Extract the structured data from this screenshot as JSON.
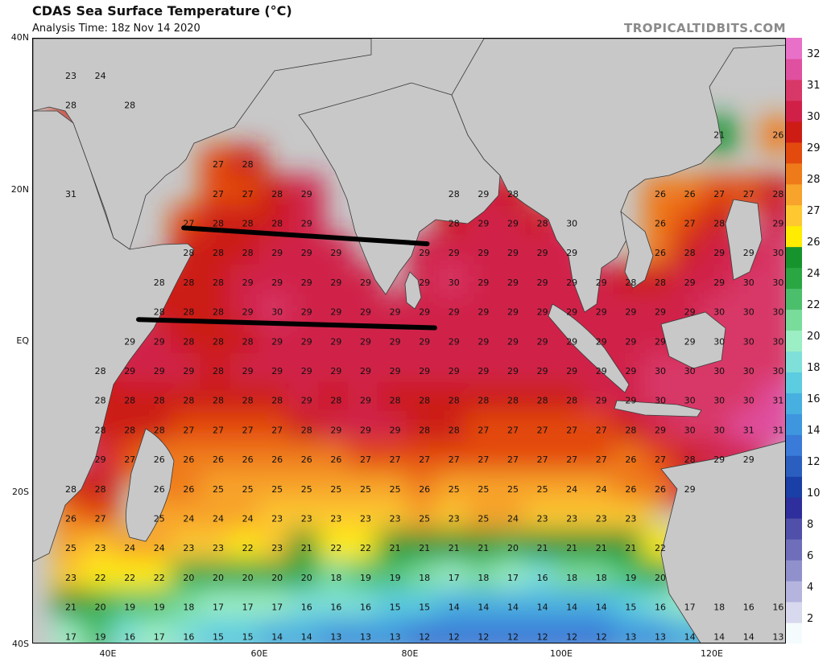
{
  "header": {
    "title": "CDAS Sea Surface Temperature (°C)",
    "analysis": "Analysis Time: 18z Nov 14 2020",
    "brand": "TROPICALTIDBITS.COM"
  },
  "map": {
    "lat_labels": [
      "40N",
      "20N",
      "EQ",
      "20S",
      "40S"
    ],
    "lon_labels": [
      "40E",
      "60E",
      "80E",
      "100E",
      "120E"
    ],
    "lon_range": [
      30,
      130
    ],
    "lat_range": [
      -40,
      40
    ],
    "annotation_lines": [
      {
        "from": [
          50.0,
          15.0
        ],
        "to": [
          82.3,
          12.9
        ]
      },
      {
        "from": [
          44.0,
          2.9
        ],
        "to": [
          83.3,
          1.8
        ]
      }
    ],
    "colors": {
      "land": "#c8c8c8",
      "coast": "#3a3a3a",
      "annotation": "#000000"
    }
  },
  "colorbar": {
    "labels": [
      "32",
      "31",
      "30",
      "29",
      "28",
      "27",
      "26",
      "24",
      "22",
      "20",
      "18",
      "16",
      "14",
      "12",
      "10",
      "8",
      "6",
      "4",
      "2"
    ],
    "colors": [
      "#f4fbfc",
      "#d8d8ee",
      "#b4b4de",
      "#9090cc",
      "#6e6ebb",
      "#5050aa",
      "#2e2e9c",
      "#1a3fa6",
      "#2a5fc0",
      "#3a7ad8",
      "#3e96de",
      "#48b0e0",
      "#5ccce0",
      "#7ee0d8",
      "#9ceec4",
      "#7adc9a",
      "#4cbf6c",
      "#2aa642",
      "#17932e",
      "#ffec00",
      "#fdc830",
      "#f7a32c",
      "#ef7a1a",
      "#e34a0e",
      "#cc1c14",
      "#d02048",
      "#d83868",
      "#e050a0",
      "#e870c8"
    ]
  },
  "sst_values": [
    [
      23,
      24,
      null,
      null,
      null,
      null,
      null,
      null,
      null,
      null,
      null,
      null,
      null,
      null,
      null,
      null,
      null,
      null,
      null,
      null,
      null,
      null,
      null,
      null,
      null
    ],
    [
      28,
      null,
      28,
      null,
      null,
      null,
      null,
      null,
      null,
      null,
      null,
      null,
      null,
      null,
      null,
      null,
      null,
      null,
      null,
      null,
      null,
      null,
      null,
      null,
      null
    ],
    [
      null,
      null,
      null,
      null,
      null,
      null,
      null,
      null,
      null,
      null,
      null,
      null,
      null,
      null,
      null,
      null,
      null,
      null,
      null,
      null,
      null,
      null,
      21,
      null,
      26
    ],
    [
      null,
      null,
      null,
      null,
      null,
      27,
      28,
      null,
      null,
      null,
      null,
      null,
      null,
      null,
      null,
      null,
      null,
      null,
      null,
      null,
      null,
      null,
      null,
      null,
      null
    ],
    [
      31,
      null,
      null,
      null,
      null,
      27,
      27,
      28,
      29,
      null,
      null,
      null,
      null,
      28,
      29,
      28,
      null,
      null,
      null,
      null,
      26,
      26,
      27,
      27,
      28
    ],
    [
      null,
      null,
      null,
      null,
      27,
      28,
      28,
      28,
      29,
      null,
      null,
      null,
      null,
      28,
      29,
      29,
      28,
      30,
      null,
      null,
      26,
      27,
      28,
      null,
      29
    ],
    [
      null,
      null,
      null,
      null,
      28,
      28,
      28,
      29,
      29,
      29,
      null,
      null,
      29,
      29,
      29,
      29,
      29,
      29,
      null,
      null,
      26,
      28,
      29,
      29,
      30
    ],
    [
      null,
      null,
      null,
      28,
      28,
      28,
      29,
      29,
      29,
      29,
      29,
      null,
      29,
      30,
      29,
      29,
      29,
      29,
      29,
      28,
      28,
      29,
      29,
      30,
      30
    ],
    [
      null,
      null,
      null,
      28,
      28,
      28,
      29,
      30,
      29,
      29,
      29,
      29,
      29,
      29,
      29,
      29,
      29,
      29,
      29,
      29,
      29,
      29,
      30,
      30,
      30
    ],
    [
      null,
      null,
      29,
      29,
      28,
      28,
      28,
      29,
      29,
      29,
      29,
      29,
      29,
      29,
      29,
      29,
      29,
      29,
      29,
      29,
      29,
      29,
      30,
      30,
      30
    ],
    [
      null,
      28,
      29,
      29,
      29,
      28,
      29,
      29,
      29,
      29,
      29,
      29,
      29,
      29,
      29,
      29,
      29,
      29,
      29,
      29,
      30,
      30,
      30,
      30,
      30
    ],
    [
      null,
      28,
      28,
      28,
      28,
      28,
      28,
      28,
      29,
      28,
      29,
      28,
      28,
      28,
      28,
      28,
      28,
      28,
      29,
      29,
      30,
      30,
      30,
      30,
      31
    ],
    [
      null,
      28,
      28,
      28,
      27,
      27,
      27,
      27,
      28,
      29,
      29,
      29,
      28,
      28,
      27,
      27,
      27,
      27,
      27,
      28,
      29,
      30,
      30,
      31,
      31
    ],
    [
      null,
      29,
      27,
      26,
      26,
      26,
      26,
      26,
      26,
      26,
      27,
      27,
      27,
      27,
      27,
      27,
      27,
      27,
      27,
      26,
      27,
      28,
      29,
      29,
      null
    ],
    [
      28,
      28,
      null,
      26,
      26,
      25,
      25,
      25,
      25,
      25,
      25,
      25,
      26,
      25,
      25,
      25,
      25,
      24,
      24,
      26,
      26,
      29,
      null,
      null,
      null
    ],
    [
      26,
      27,
      null,
      25,
      24,
      24,
      24,
      23,
      23,
      23,
      23,
      23,
      25,
      23,
      25,
      24,
      23,
      23,
      23,
      23,
      null,
      null,
      null,
      null,
      null
    ],
    [
      25,
      23,
      24,
      24,
      23,
      23,
      22,
      23,
      21,
      22,
      22,
      21,
      21,
      21,
      21,
      20,
      21,
      21,
      21,
      21,
      22,
      null,
      null,
      null,
      null
    ],
    [
      23,
      22,
      22,
      22,
      20,
      20,
      20,
      20,
      20,
      18,
      19,
      19,
      18,
      17,
      18,
      17,
      16,
      18,
      18,
      19,
      20,
      null,
      null,
      null,
      null
    ],
    [
      21,
      20,
      19,
      19,
      18,
      17,
      17,
      17,
      16,
      16,
      16,
      15,
      15,
      14,
      14,
      14,
      14,
      14,
      14,
      15,
      16,
      17,
      18,
      16,
      16
    ],
    [
      17,
      19,
      16,
      17,
      16,
      15,
      15,
      14,
      14,
      13,
      13,
      13,
      12,
      12,
      12,
      12,
      12,
      12,
      12,
      13,
      13,
      14,
      14,
      14,
      13
    ]
  ]
}
